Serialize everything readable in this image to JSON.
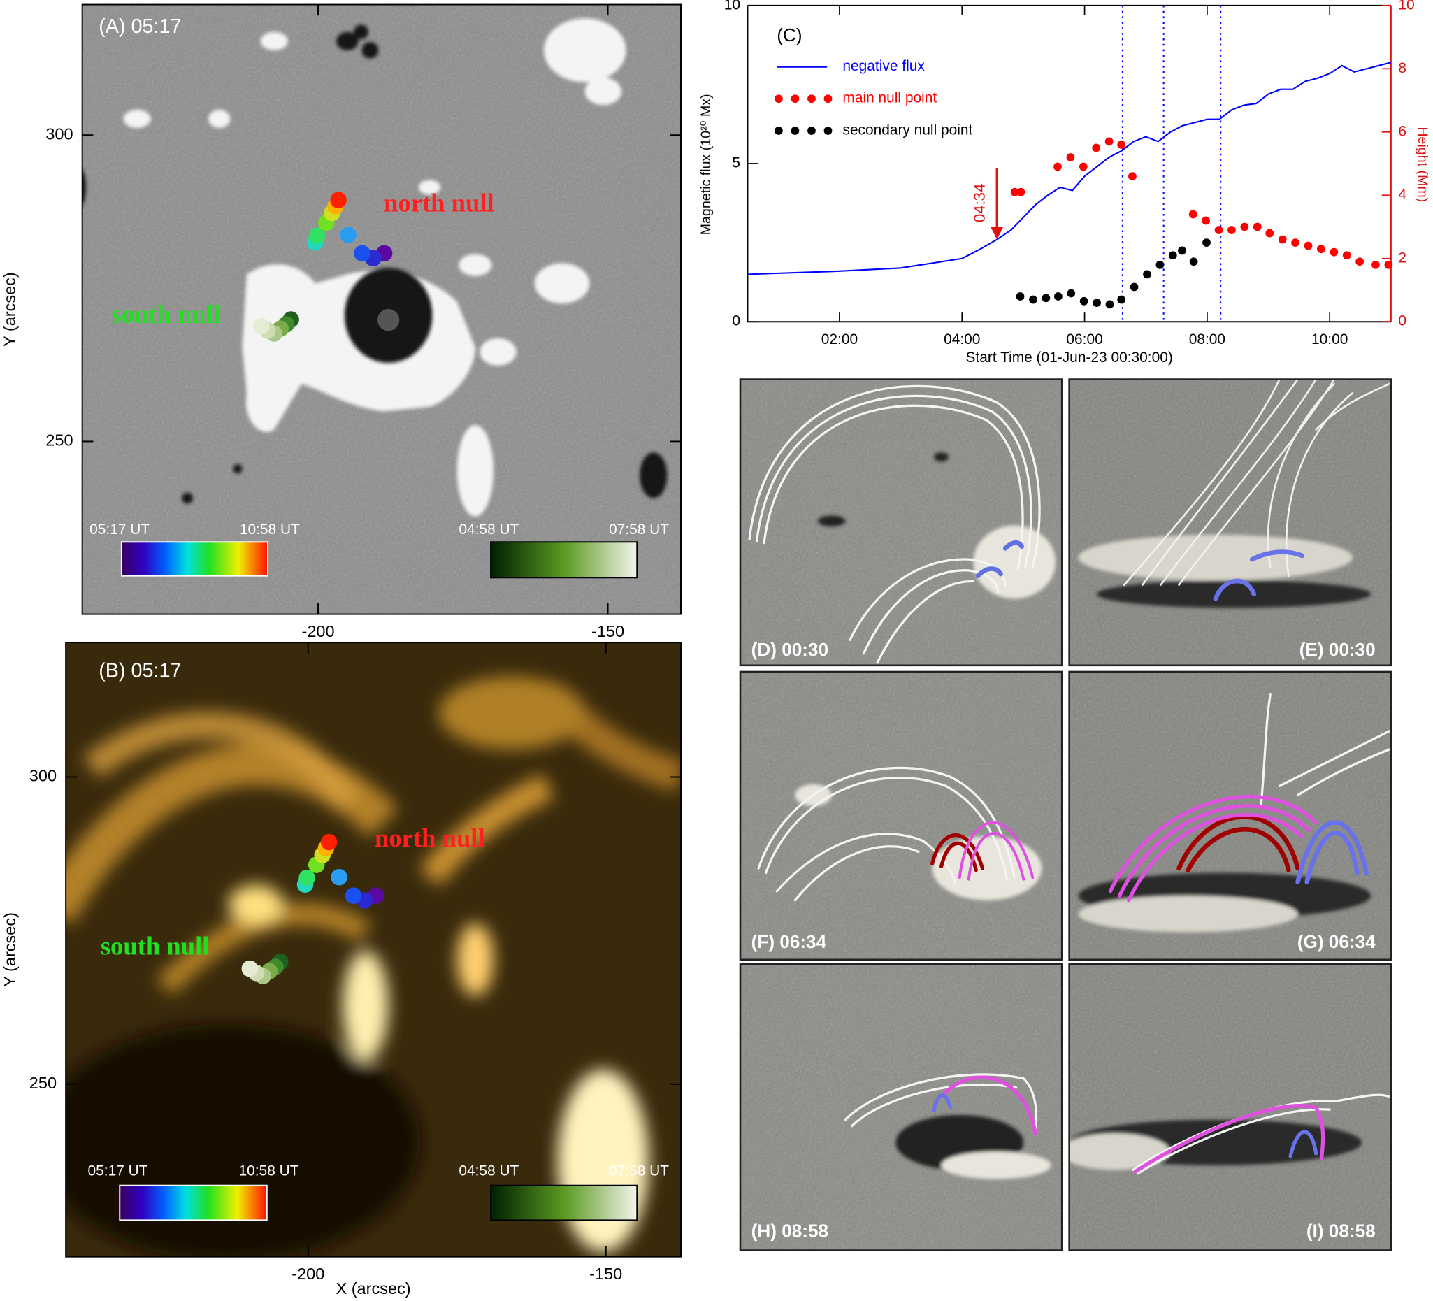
{
  "chart_data": [
    {
      "type": "scatter",
      "title": "(A) 05:17",
      "ylabel": "Y (arcsec)",
      "xlim": [
        -240.7,
        -137.4
      ],
      "ylim": [
        221.8,
        321.3
      ],
      "xticks": [
        -200,
        -150
      ],
      "yticks": [
        250,
        300
      ],
      "series": [
        {
          "name": "north null",
          "color": "#ff2020",
          "x": [
            -188.6,
            -190.5,
            -192.4,
            -194.8,
            -200.5,
            -200.2,
            -198.6,
            -197.6,
            -197.0,
            -196.5
          ],
          "y": [
            280.7,
            279.9,
            280.7,
            283.7,
            282.5,
            283.6,
            285.7,
            287.3,
            288.4,
            289.4
          ],
          "colors": [
            "#5a0aa0",
            "#2a2ad0",
            "#1a4ff0",
            "#2a9df0",
            "#20d8c0",
            "#30e060",
            "#70e020",
            "#d0e020",
            "#ffb000",
            "#ff2000"
          ]
        },
        {
          "name": "south null",
          "color": "#20e020",
          "x": [
            -204.7,
            -205.5,
            -206.5,
            -207.6,
            -208.7,
            -209.8
          ],
          "y": [
            269.9,
            269.1,
            268.4,
            267.6,
            268.1,
            268.8
          ],
          "colors": [
            "#1f5f1f",
            "#3f8a2a",
            "#7aaa4a",
            "#aac88a",
            "#cfdcb0",
            "#e6ecd4"
          ]
        }
      ],
      "colorbars": [
        {
          "from": "05:17 UT",
          "to": "10:58 UT"
        },
        {
          "from": "04:58 UT",
          "to": "07:58 UT"
        }
      ]
    },
    {
      "type": "scatter",
      "title": "(B) 05:17",
      "ylabel": "Y (arcsec)",
      "xlabel": "X (arcsec)",
      "xlim": [
        -240.7,
        -137.4
      ],
      "ylim": [
        221.9,
        321.9
      ],
      "xticks": [
        -200,
        -150
      ],
      "yticks": [
        250,
        300
      ],
      "series": [
        {
          "name": "north null",
          "color": "#ff2020",
          "x": [
            -188.6,
            -190.5,
            -192.4,
            -194.8,
            -200.5,
            -200.2,
            -198.6,
            -197.6,
            -197.0,
            -196.5
          ],
          "y": [
            280.7,
            279.9,
            280.7,
            283.7,
            282.5,
            283.6,
            285.7,
            287.3,
            288.4,
            289.4
          ],
          "colors": [
            "#5a0aa0",
            "#2a2ad0",
            "#1a4ff0",
            "#2a9df0",
            "#20d8c0",
            "#30e060",
            "#70e020",
            "#d0e020",
            "#ffb000",
            "#ff2000"
          ]
        },
        {
          "name": "south null",
          "color": "#20e020",
          "x": [
            -204.7,
            -205.5,
            -206.5,
            -207.6,
            -208.7,
            -209.8
          ],
          "y": [
            269.9,
            269.1,
            268.4,
            267.6,
            268.1,
            268.8
          ],
          "colors": [
            "#1f5f1f",
            "#3f8a2a",
            "#7aaa4a",
            "#aac88a",
            "#cfdcb0",
            "#e6ecd4"
          ]
        }
      ],
      "colorbars": [
        {
          "from": "05:17 UT",
          "to": "10:58 UT"
        },
        {
          "from": "04:58 UT",
          "to": "07:58 UT"
        }
      ]
    },
    {
      "type": "line",
      "title": "(C)",
      "xlabel": "Start Time (01-Jun-23 00:30:00)",
      "ylabel": "Magnetic flux (10²⁰ Mx)",
      "y2label": "Height (Mm)",
      "y2color": "#e01010",
      "xlim": [
        0.5,
        11.0
      ],
      "xticks": [
        {
          "value": 2,
          "label": "02:00"
        },
        {
          "value": 4,
          "label": "04:00"
        },
        {
          "value": 6,
          "label": "06:00"
        },
        {
          "value": 8,
          "label": "08:00"
        },
        {
          "value": 10,
          "label": "10:00"
        }
      ],
      "ylim": [
        0,
        10
      ],
      "yticks": [
        0,
        5,
        10
      ],
      "y2lim": [
        0,
        10
      ],
      "y2ticks": [
        0,
        2,
        4,
        6,
        8,
        10
      ],
      "legend": "upper left",
      "series": [
        {
          "name": "negative flux",
          "color": "#0000ff",
          "style": "line",
          "x": [
            0.5,
            2.0,
            3.0,
            4.0,
            4.3,
            4.57,
            4.8,
            5.0,
            5.2,
            5.4,
            5.6,
            5.8,
            6.0,
            6.2,
            6.4,
            6.6,
            6.8,
            7.0,
            7.2,
            7.4,
            7.6,
            7.8,
            8.0,
            8.2,
            8.4,
            8.6,
            8.8,
            9.0,
            9.2,
            9.4,
            9.6,
            9.8,
            10.0,
            10.2,
            10.4,
            10.6,
            10.8,
            11.0
          ],
          "values": [
            1.5,
            1.6,
            1.7,
            2.0,
            2.3,
            2.6,
            2.9,
            3.3,
            3.7,
            4.0,
            4.25,
            4.15,
            4.6,
            4.9,
            5.2,
            5.4,
            5.7,
            5.85,
            5.7,
            6.0,
            6.2,
            6.3,
            6.4,
            6.4,
            6.7,
            6.85,
            6.9,
            7.2,
            7.35,
            7.35,
            7.6,
            7.7,
            7.85,
            8.1,
            7.9,
            8.0,
            8.1,
            8.2
          ]
        },
        {
          "name": "main null point",
          "color": "#ff0000",
          "style": "dots",
          "axis": "y2",
          "x": [
            4.86,
            4.96,
            5.56,
            5.77,
            5.98,
            6.19,
            6.4,
            6.6,
            6.78,
            7.77,
            7.98,
            8.19,
            8.4,
            8.61,
            8.82,
            9.02,
            9.23,
            9.44,
            9.65,
            9.86,
            10.07,
            10.28,
            10.49,
            10.75,
            10.96
          ],
          "values": [
            4.1,
            4.1,
            4.9,
            5.2,
            4.9,
            5.5,
            5.7,
            5.6,
            4.6,
            3.4,
            3.2,
            2.9,
            2.9,
            3.0,
            3.0,
            2.8,
            2.6,
            2.5,
            2.4,
            2.3,
            2.2,
            2.1,
            1.9,
            1.8,
            1.8
          ]
        },
        {
          "name": "secondary null point",
          "color": "#000000",
          "style": "dots",
          "axis": "y2",
          "x": [
            4.95,
            5.16,
            5.37,
            5.57,
            5.78,
            5.99,
            6.2,
            6.41,
            6.6,
            6.81,
            7.02,
            7.23,
            7.44,
            7.59,
            7.78,
            7.99
          ],
          "values": [
            0.8,
            0.7,
            0.75,
            0.8,
            0.9,
            0.65,
            0.6,
            0.55,
            0.7,
            1.1,
            1.5,
            1.8,
            2.1,
            2.25,
            1.9,
            2.5
          ]
        }
      ],
      "vlines": [
        6.62,
        7.29,
        8.22
      ],
      "vline_color": "#0000ff",
      "arrow": {
        "x": 4.57,
        "y": 2.6,
        "label": "04:34",
        "color": "#e01010"
      }
    }
  ],
  "field_line_panels": [
    {
      "label": "(D) 00:30"
    },
    {
      "label": "(E) 00:30"
    },
    {
      "label": "(F) 06:34"
    },
    {
      "label": "(G) 06:34"
    },
    {
      "label": "(H) 08:58"
    },
    {
      "label": "(I) 08:58"
    }
  ]
}
